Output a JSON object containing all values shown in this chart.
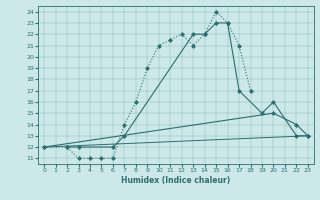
{
  "bg_color": "#cce8e8",
  "line_color": "#2d6e6e",
  "xlabel": "Humidex (Indice chaleur)",
  "ylim": [
    10.5,
    24.5
  ],
  "xlim": [
    -0.5,
    23.5
  ],
  "yticks": [
    11,
    12,
    13,
    14,
    15,
    16,
    17,
    18,
    19,
    20,
    21,
    22,
    23,
    24
  ],
  "xticks": [
    0,
    1,
    2,
    3,
    4,
    5,
    6,
    7,
    8,
    9,
    10,
    11,
    12,
    13,
    14,
    15,
    16,
    17,
    18,
    19,
    20,
    21,
    22,
    23
  ],
  "series": [
    {
      "x": [
        0,
        2,
        3,
        4,
        5,
        6,
        7,
        8,
        9,
        10,
        11,
        12,
        13,
        14,
        15,
        16,
        17,
        18
      ],
      "y": [
        12,
        12,
        11,
        11,
        11,
        11,
        14,
        16,
        19,
        21,
        21.5,
        22,
        21,
        22,
        24,
        23,
        21,
        17
      ],
      "marker": "D",
      "markersize": 2,
      "linewidth": 0.8,
      "linestyle": ":"
    },
    {
      "x": [
        2,
        3,
        6,
        7,
        13,
        14,
        15,
        16,
        17,
        19,
        20,
        22,
        23
      ],
      "y": [
        12,
        12,
        12,
        13,
        22,
        22,
        23,
        23,
        17,
        15,
        16,
        13,
        13
      ],
      "marker": "D",
      "markersize": 2,
      "linewidth": 0.8,
      "linestyle": "-"
    },
    {
      "x": [
        0,
        20,
        22,
        23
      ],
      "y": [
        12,
        15,
        14,
        13
      ],
      "marker": "D",
      "markersize": 2,
      "linewidth": 0.8,
      "linestyle": "-"
    },
    {
      "x": [
        0,
        23
      ],
      "y": [
        12,
        13
      ],
      "marker": "None",
      "markersize": 0,
      "linewidth": 0.7,
      "linestyle": "-"
    }
  ]
}
